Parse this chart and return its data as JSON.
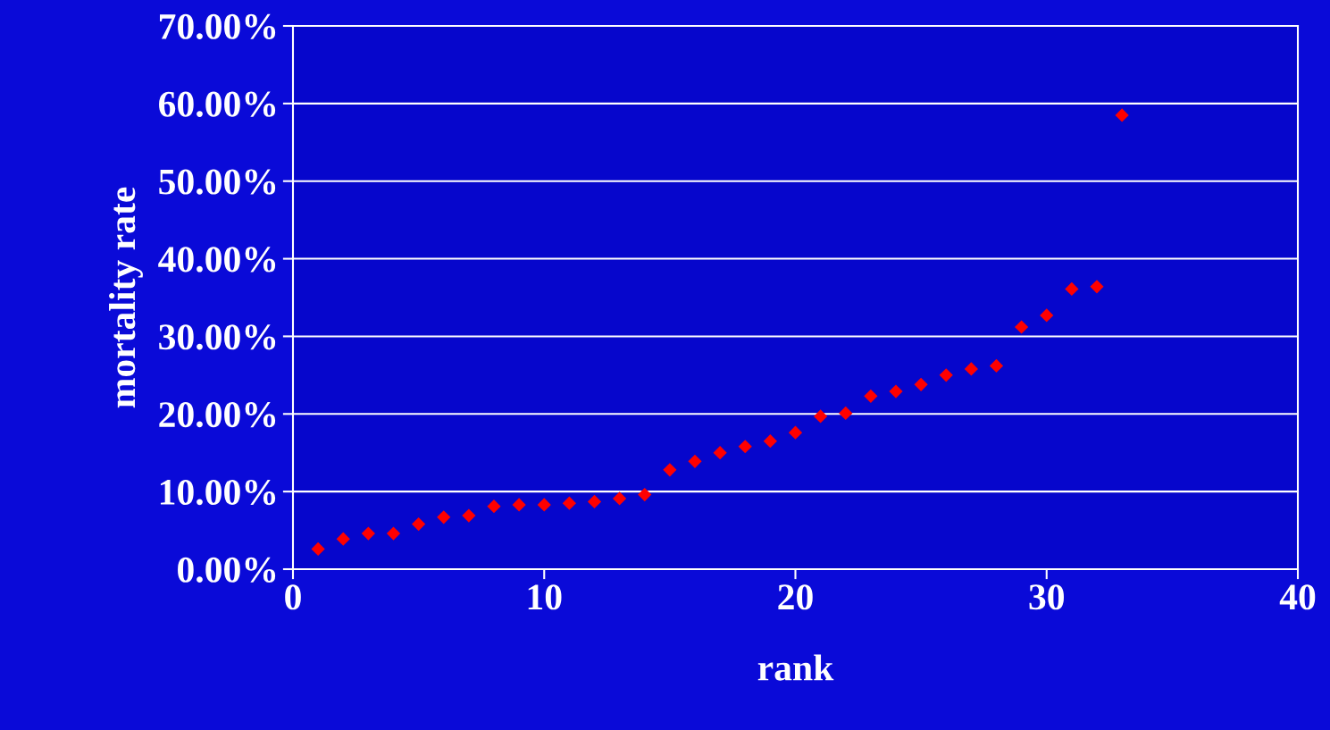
{
  "chart_data": {
    "type": "scatter",
    "xlabel": "rank",
    "ylabel": "mortality rate",
    "x": [
      1,
      2,
      3,
      4,
      5,
      6,
      7,
      8,
      9,
      10,
      11,
      12,
      13,
      14,
      15,
      16,
      17,
      18,
      19,
      20,
      21,
      22,
      23,
      24,
      25,
      26,
      27,
      28,
      29,
      30,
      31,
      32,
      33
    ],
    "series": [
      {
        "color": "#ff0000",
        "values": [
          2.6,
          3.9,
          4.6,
          4.6,
          5.8,
          6.7,
          6.9,
          8.1,
          8.3,
          8.3,
          8.5,
          8.7,
          9.1,
          9.6,
          12.8,
          13.9,
          15.0,
          15.8,
          16.5,
          17.6,
          19.7,
          20.1,
          22.3,
          22.9,
          23.8,
          25.0,
          25.8,
          26.2,
          31.2,
          32.7,
          36.1,
          36.4,
          58.5
        ]
      }
    ],
    "marker": "diamond",
    "grid": "y",
    "xlim": [
      0,
      40
    ],
    "xticks": [
      0,
      10,
      20,
      30,
      40
    ],
    "ylim": [
      0,
      70
    ],
    "yticks": [
      {
        "value": 0,
        "label": "0.00%"
      },
      {
        "value": 10,
        "label": "10.00%"
      },
      {
        "value": 20,
        "label": "20.00%"
      },
      {
        "value": 30,
        "label": "30.00%"
      },
      {
        "value": 40,
        "label": "40.00%"
      },
      {
        "value": 50,
        "label": "50.00%"
      },
      {
        "value": 60,
        "label": "60.00%"
      },
      {
        "value": 70,
        "label": "70.00%"
      }
    ]
  }
}
